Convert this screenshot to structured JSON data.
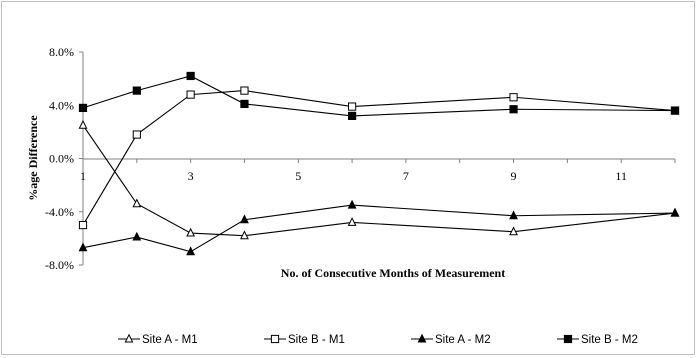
{
  "chart_data": {
    "type": "line",
    "title": "",
    "xlabel": "No. of Consecutive Months of Measurement",
    "ylabel": "%age Difference",
    "xlim": [
      1,
      12
    ],
    "ylim": [
      -8.0,
      8.0
    ],
    "x_ticks": [
      "1",
      "3",
      "5",
      "7",
      "9",
      "11"
    ],
    "y_ticks": [
      "8.0%",
      "4.0%",
      "0.0%",
      "-4.0%",
      "-8.0%"
    ],
    "grid": false,
    "legend_position": "bottom",
    "x": [
      1,
      2,
      3,
      4,
      6,
      9,
      12
    ],
    "series": [
      {
        "name": "Site A - M1",
        "marker": "open-triangle",
        "values": [
          2.5,
          -3.4,
          -5.6,
          -5.8,
          -4.8,
          -5.5,
          -4.1
        ]
      },
      {
        "name": "Site B - M1",
        "marker": "open-square",
        "values": [
          -5.0,
          1.8,
          4.8,
          5.1,
          3.9,
          4.6,
          3.6
        ]
      },
      {
        "name": "Site A - M2",
        "marker": "filled-triangle",
        "values": [
          -6.7,
          -5.9,
          -7.0,
          -4.6,
          -3.5,
          -4.3,
          -4.1
        ]
      },
      {
        "name": "Site B - M2",
        "marker": "filled-square",
        "values": [
          3.8,
          5.1,
          6.2,
          4.1,
          3.2,
          3.7,
          3.6
        ]
      }
    ]
  }
}
